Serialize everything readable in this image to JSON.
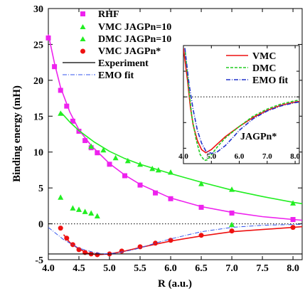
{
  "chart_data": [
    {
      "type": "scatter",
      "xlabel": "R (a.u.)",
      "ylabel": "Binding energy (mH)",
      "xlim": [
        4.0,
        8.15
      ],
      "ylim": [
        -5,
        30
      ],
      "xticks": [
        "4.0",
        "4.5",
        "5.0",
        "5.5",
        "6.0",
        "6.5",
        "7.0",
        "7.5",
        "8.0"
      ],
      "yticks": [
        "-5",
        "0",
        "5",
        "10",
        "15",
        "20",
        "25",
        "30"
      ],
      "legend_position": "top-left",
      "grid": false,
      "series": [
        {
          "name": "RHF",
          "marker": "square",
          "color": "#ee22ee",
          "points": [
            [
              4.0,
              25.9
            ],
            [
              4.1,
              21.9
            ],
            [
              4.2,
              18.6
            ],
            [
              4.3,
              16.4
            ],
            [
              4.4,
              14.3
            ],
            [
              4.5,
              12.9
            ],
            [
              4.6,
              11.6
            ],
            [
              4.7,
              10.6
            ],
            [
              4.8,
              9.9
            ],
            [
              5.0,
              8.3
            ],
            [
              5.25,
              6.7
            ],
            [
              5.5,
              5.4
            ],
            [
              5.75,
              4.3
            ],
            [
              6.0,
              3.5
            ],
            [
              6.5,
              2.3
            ],
            [
              7.0,
              1.5
            ],
            [
              8.0,
              0.6
            ]
          ],
          "fit": [
            [
              4.0,
              26.4
            ],
            [
              4.1,
              22.4
            ],
            [
              4.2,
              19.0
            ],
            [
              4.35,
              15.6
            ],
            [
              4.5,
              13.1
            ],
            [
              4.7,
              10.9
            ],
            [
              5.0,
              8.4
            ],
            [
              5.25,
              6.8
            ],
            [
              5.5,
              5.5
            ],
            [
              6.0,
              3.6
            ],
            [
              6.5,
              2.4
            ],
            [
              7.0,
              1.6
            ],
            [
              7.5,
              1.0
            ],
            [
              8.0,
              0.6
            ],
            [
              8.15,
              0.5
            ]
          ]
        },
        {
          "name": "VMC JAGPn=10",
          "marker": "triangle",
          "color": "#22ee22",
          "points": [
            [
              4.2,
              15.4
            ],
            [
              4.7,
              10.8
            ],
            [
              4.9,
              10.3
            ],
            [
              5.1,
              9.2
            ],
            [
              5.3,
              8.8
            ],
            [
              5.5,
              8.3
            ],
            [
              5.7,
              7.7
            ],
            [
              5.8,
              7.5
            ],
            [
              6.0,
              7.2
            ],
            [
              6.5,
              5.6
            ],
            [
              7.0,
              4.8
            ],
            [
              8.0,
              2.9
            ]
          ],
          "fit": [
            [
              4.2,
              15.6
            ],
            [
              4.35,
              14.2
            ],
            [
              4.5,
              13.0
            ],
            [
              4.75,
              11.4
            ],
            [
              5.0,
              10.1
            ],
            [
              5.25,
              9.1
            ],
            [
              5.5,
              8.3
            ],
            [
              6.0,
              7.0
            ],
            [
              6.5,
              5.8
            ],
            [
              7.0,
              4.7
            ],
            [
              7.5,
              3.8
            ],
            [
              8.0,
              3.0
            ],
            [
              8.15,
              2.8
            ]
          ]
        },
        {
          "name": "DMC JAGPn=10",
          "marker": "triangle",
          "color": "#22ee22",
          "points": [
            [
              4.2,
              3.7
            ],
            [
              4.4,
              2.2
            ],
            [
              4.5,
              2.0
            ],
            [
              4.6,
              1.7
            ],
            [
              4.7,
              1.5
            ],
            [
              4.8,
              1.1
            ],
            [
              7.0,
              -0.1
            ]
          ]
        },
        {
          "name": "VMC JAGPn*",
          "marker": "circle",
          "color": "#ee1111",
          "points": [
            [
              4.2,
              -0.6
            ],
            [
              4.3,
              -2.0
            ],
            [
              4.4,
              -2.9
            ],
            [
              4.5,
              -3.6
            ],
            [
              4.6,
              -4.0
            ],
            [
              4.7,
              -4.2
            ],
            [
              4.8,
              -4.3
            ],
            [
              5.0,
              -4.2
            ],
            [
              5.2,
              -3.8
            ],
            [
              5.5,
              -3.2
            ],
            [
              5.75,
              -2.7
            ],
            [
              6.0,
              -2.3
            ],
            [
              6.5,
              -1.6
            ],
            [
              7.0,
              -1.0
            ],
            [
              8.0,
              -0.5
            ]
          ],
          "fit": [
            [
              4.25,
              -1.5
            ],
            [
              4.35,
              -2.6
            ],
            [
              4.5,
              -3.5
            ],
            [
              4.65,
              -4.1
            ],
            [
              4.8,
              -4.3
            ],
            [
              5.0,
              -4.2
            ],
            [
              5.25,
              -3.8
            ],
            [
              5.5,
              -3.3
            ],
            [
              6.0,
              -2.4
            ],
            [
              6.5,
              -1.7
            ],
            [
              7.0,
              -1.1
            ],
            [
              7.5,
              -0.8
            ],
            [
              8.0,
              -0.5
            ],
            [
              8.15,
              -0.4
            ]
          ]
        },
        {
          "name": "Experiment",
          "line": "solid",
          "color": "#000000",
          "y": -4.2
        },
        {
          "name": "EMO fit",
          "line": "dash-dot",
          "color": "#3355ee",
          "curve": [
            [
              4.0,
              -0.5
            ],
            [
              4.25,
              -2.2
            ],
            [
              4.5,
              -3.4
            ],
            [
              4.75,
              -4.0
            ],
            [
              4.9,
              -4.2
            ],
            [
              5.1,
              -4.1
            ],
            [
              5.4,
              -3.6
            ],
            [
              5.75,
              -2.7
            ],
            [
              6.0,
              -2.1
            ],
            [
              6.5,
              -1.1
            ],
            [
              7.0,
              -0.5
            ],
            [
              7.5,
              -0.2
            ],
            [
              8.0,
              -0.1
            ],
            [
              8.15,
              -0.05
            ]
          ]
        }
      ],
      "reference_line": {
        "y": 0,
        "style": "dotted"
      }
    },
    {
      "type": "line",
      "label": "JAGPn*",
      "xlim": [
        4.0,
        8.15
      ],
      "ylim": [
        -5.2,
        4.0
      ],
      "xticks": [
        "4.0",
        "5.0",
        "6.0",
        "7.0",
        "8.0"
      ],
      "legend_position": "top-right",
      "series": [
        {
          "name": "VMC",
          "line": "solid",
          "color": "#ee1111",
          "curve": [
            [
              4.0,
              3.8
            ],
            [
              4.15,
              1.2
            ],
            [
              4.25,
              -0.8
            ],
            [
              4.35,
              -2.2
            ],
            [
              4.5,
              -3.4
            ],
            [
              4.65,
              -4.1
            ],
            [
              4.8,
              -4.35
            ],
            [
              5.0,
              -4.1
            ],
            [
              5.25,
              -3.6
            ],
            [
              5.5,
              -3.1
            ],
            [
              6.0,
              -2.3
            ],
            [
              6.5,
              -1.6
            ],
            [
              7.0,
              -1.05
            ],
            [
              7.5,
              -0.65
            ],
            [
              8.0,
              -0.4
            ],
            [
              8.15,
              -0.35
            ]
          ]
        },
        {
          "name": "DMC",
          "line": "dashed",
          "color": "#22cc22",
          "curve": [
            [
              4.05,
              3.8
            ],
            [
              4.2,
              0.5
            ],
            [
              4.3,
              -1.5
            ],
            [
              4.45,
              -3.3
            ],
            [
              4.6,
              -4.5
            ],
            [
              4.75,
              -4.95
            ],
            [
              4.85,
              -4.9
            ],
            [
              5.0,
              -4.5
            ],
            [
              5.25,
              -3.8
            ],
            [
              5.5,
              -3.2
            ],
            [
              6.0,
              -2.3
            ],
            [
              6.5,
              -1.5
            ],
            [
              7.0,
              -0.95
            ],
            [
              7.5,
              -0.55
            ],
            [
              8.0,
              -0.3
            ],
            [
              8.15,
              -0.25
            ]
          ]
        },
        {
          "name": "EMO fit",
          "line": "dash-dot",
          "color": "#2233cc",
          "curve": [
            [
              4.05,
              3.8
            ],
            [
              4.2,
              1.0
            ],
            [
              4.35,
              -1.0
            ],
            [
              4.5,
              -2.6
            ],
            [
              4.65,
              -3.6
            ],
            [
              4.8,
              -4.2
            ],
            [
              5.0,
              -4.4
            ],
            [
              5.2,
              -4.3
            ],
            [
              5.5,
              -3.8
            ],
            [
              5.8,
              -3.1
            ],
            [
              6.0,
              -2.6
            ],
            [
              6.5,
              -1.7
            ],
            [
              7.0,
              -1.1
            ],
            [
              7.5,
              -0.7
            ],
            [
              8.0,
              -0.45
            ],
            [
              8.15,
              -0.4
            ]
          ]
        }
      ],
      "reference_line": {
        "y": 0,
        "style": "dotted"
      }
    }
  ]
}
